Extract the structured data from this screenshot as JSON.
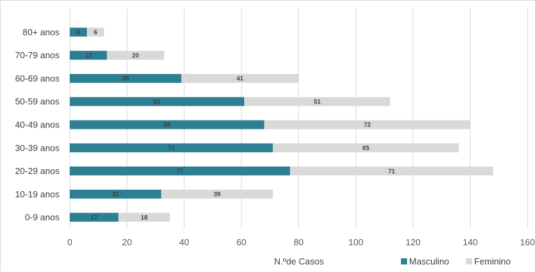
{
  "chart_data": {
    "type": "bar",
    "orientation": "horizontal",
    "stacked": true,
    "categories": [
      "0-9 anos",
      "10-19 anos",
      "20-29 anos",
      "30-39 anos",
      "40-49 anos",
      "50-59 anos",
      "60-69 anos",
      "70-79 anos",
      "80+ anos"
    ],
    "series": [
      {
        "name": "Masculino",
        "color": "#2e7f93",
        "values": [
          17,
          32,
          77,
          71,
          68,
          61,
          39,
          13,
          6
        ]
      },
      {
        "name": "Feminino",
        "color": "#d9d9d9",
        "values": [
          18,
          39,
          71,
          65,
          72,
          51,
          41,
          20,
          6
        ]
      }
    ],
    "xlabel": "N.ºde Casos",
    "xlim": [
      0,
      160
    ],
    "xticks": [
      0,
      20,
      40,
      60,
      80,
      100,
      120,
      140,
      160
    ],
    "grid": "vertical",
    "legend": "bottom-right"
  }
}
